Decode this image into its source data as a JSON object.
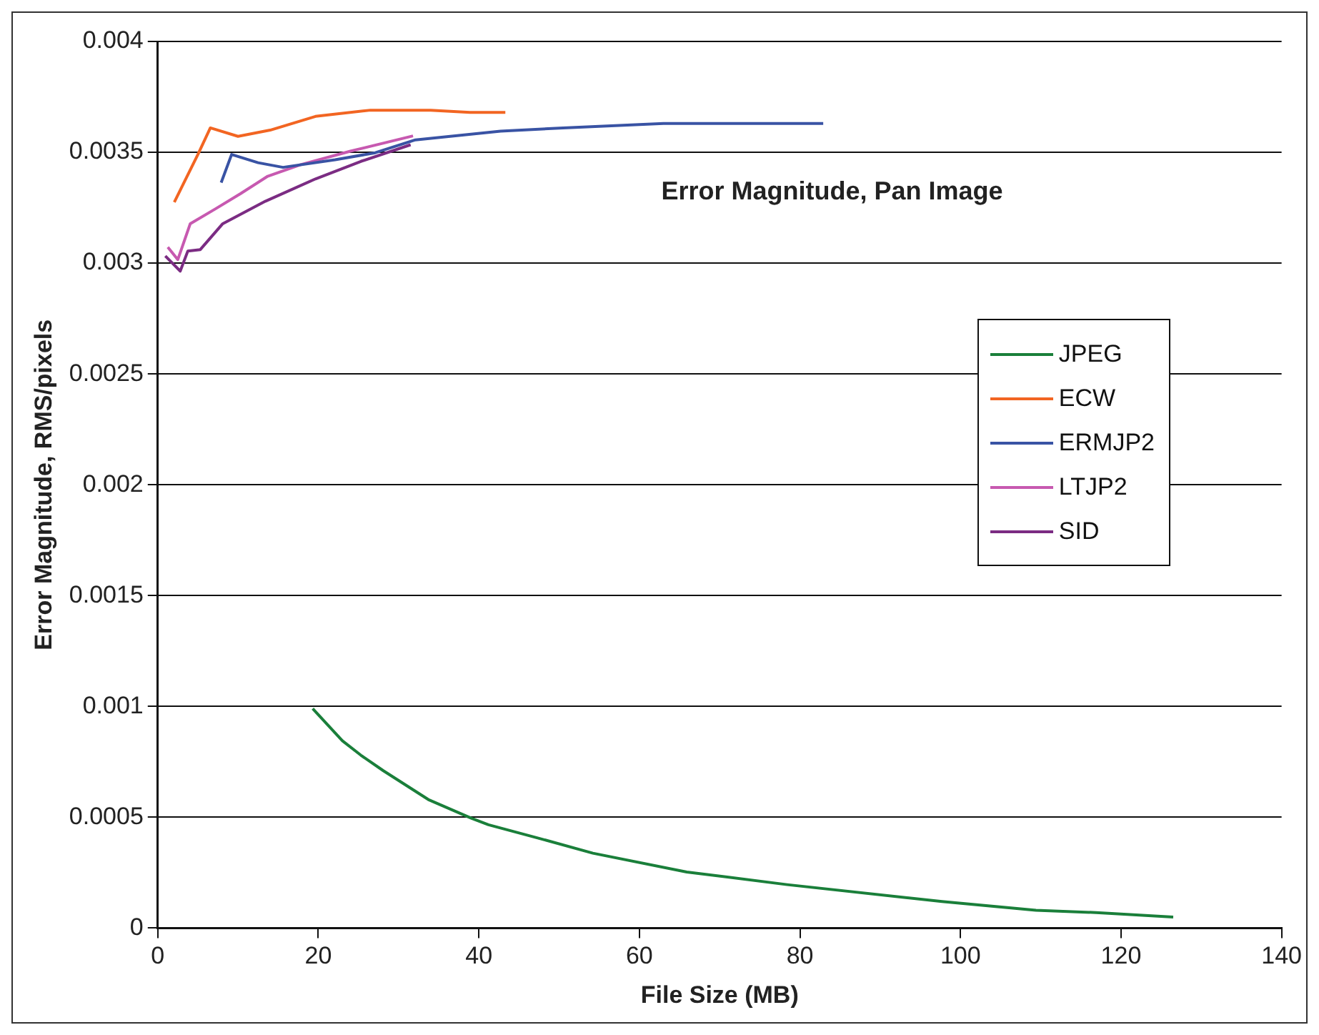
{
  "chart_data": {
    "type": "line",
    "title": "Error Magnitude, Pan Image",
    "xlabel": "File Size (MB)",
    "ylabel": "Error Magnitude, RMS/pixels",
    "xlim": [
      0,
      140
    ],
    "xticks": [
      0,
      20,
      40,
      60,
      80,
      100,
      120,
      140
    ],
    "ylim": [
      0,
      0.004
    ],
    "yticks": [
      0,
      0.0005,
      0.001,
      0.0015,
      0.002,
      0.0025,
      0.003,
      0.0035,
      0.004
    ],
    "grid": "y",
    "legend": "right",
    "marker": "none",
    "line_style": "solid",
    "series": [
      {
        "name": "JPEG",
        "color": "#1a7f3a",
        "x": [
          19.3,
          23,
          25.3,
          28.1,
          33.7,
          39.1,
          41.2,
          47.5,
          54.2,
          65.9,
          78.4,
          97.7,
          109.4,
          116.9,
          126.5
        ],
        "values": [
          0.00099,
          0.000845,
          0.00078,
          0.00071,
          0.00058,
          0.000495,
          0.000466,
          0.000405,
          0.000338,
          0.000253,
          0.000196,
          0.00012,
          8e-05,
          7e-05,
          5e-05
        ]
      },
      {
        "name": "ECW",
        "color": "#f26522",
        "x": [
          2.06,
          5.0,
          6.55,
          10.0,
          14.0,
          19.65,
          26.5,
          34,
          38.9,
          43.3
        ],
        "values": [
          0.003275,
          0.00349,
          0.00361,
          0.003572,
          0.0036,
          0.003662,
          0.00369,
          0.00369,
          0.00368,
          0.00368
        ]
      },
      {
        "name": "ERMJP2",
        "color": "#3953a4",
        "x": [
          7.9,
          9.2,
          12.5,
          15.6,
          22.1,
          27.1,
          32.1,
          42.7,
          50.5,
          63,
          82.9
        ],
        "values": [
          0.003363,
          0.00349,
          0.003453,
          0.003432,
          0.003466,
          0.003498,
          0.003556,
          0.003595,
          0.00361,
          0.00363,
          0.00363
        ]
      },
      {
        "name": "LTJP2",
        "color": "#c759b0",
        "x": [
          1.25,
          2.5,
          4.05,
          7.2,
          10.3,
          13.7,
          17.8,
          24.0,
          31.8
        ],
        "values": [
          0.003072,
          0.003016,
          0.003178,
          0.003245,
          0.003313,
          0.003392,
          0.003444,
          0.003505,
          0.003574
        ]
      },
      {
        "name": "SID",
        "color": "#7b2c83",
        "x": [
          0.94,
          2.8,
          3.74,
          5.3,
          8.1,
          13.4,
          19.65,
          25.3,
          31.5
        ],
        "values": [
          0.003032,
          0.002964,
          0.003054,
          0.003061,
          0.003178,
          0.003279,
          0.00338,
          0.003459,
          0.003534
        ]
      }
    ]
  }
}
